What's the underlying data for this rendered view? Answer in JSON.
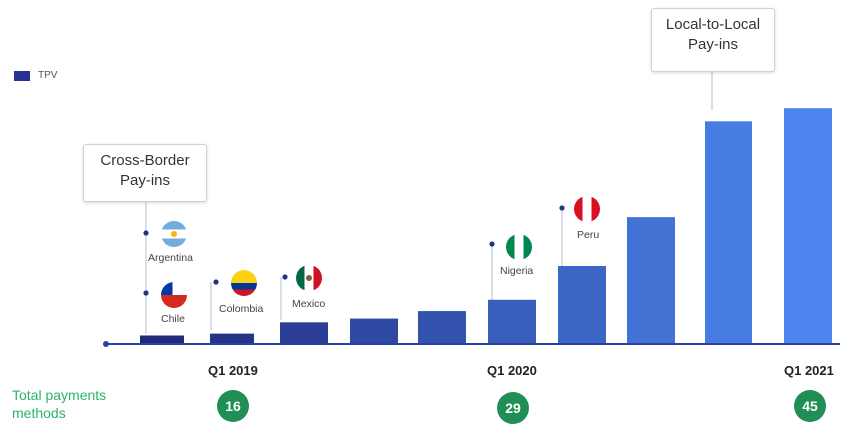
{
  "colors": {
    "bar_start": "#1f2a7a",
    "bar_end": "#4c86ee",
    "methods_green": "#2cb36b",
    "badge_green": "#1f8f55"
  },
  "legend": {
    "label": "TPV"
  },
  "callouts": {
    "cross_border": "Cross-Border\nPay-ins",
    "local_to_local": "Local-to-Local\nPay-ins"
  },
  "countries": [
    "Argentina",
    "Chile",
    "Colombia",
    "Mexico",
    "Nigeria",
    "Peru"
  ],
  "total_payment_methods": {
    "title": "Total payments methods",
    "values": [
      "16",
      "29",
      "45"
    ]
  },
  "chart_data": {
    "type": "bar",
    "series": [
      {
        "name": "TPV",
        "values": [
          4,
          5,
          11,
          13,
          17,
          23,
          41,
          67,
          118,
          125
        ]
      }
    ],
    "tick_labels": [
      "Q1 2019",
      "Q1 2020",
      "Q1 2021"
    ],
    "ylim": [
      0,
      140
    ],
    "grid": false,
    "legend_position": "top-left"
  }
}
